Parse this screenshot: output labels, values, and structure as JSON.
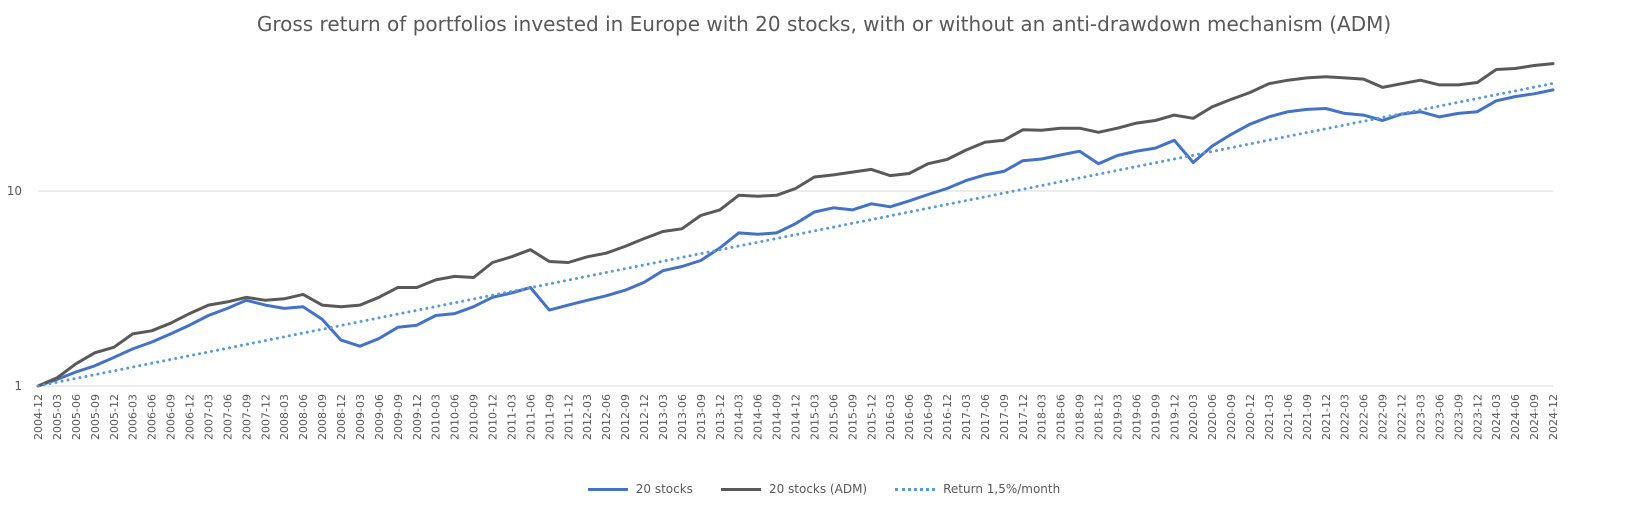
{
  "chart_data": {
    "type": "line",
    "title": "Gross return of portfolios invested in Europe with 20 stocks, with or without an anti-drawdown mechanism (ADM)",
    "xlabel": "",
    "ylabel": "",
    "yscale": "log",
    "ylim": [
      1,
      60
    ],
    "ytick_labels": [
      "1",
      "10"
    ],
    "grid": true,
    "legend_position": "bottom",
    "x_tick_labels": [
      "2004-12",
      "2005-03",
      "2005-06",
      "2005-09",
      "2005-12",
      "2006-03",
      "2006-06",
      "2006-09",
      "2006-12",
      "2007-03",
      "2007-06",
      "2007-09",
      "2007-12",
      "2008-03",
      "2008-06",
      "2008-09",
      "2008-12",
      "2009-03",
      "2009-06",
      "2009-09",
      "2009-12",
      "2010-03",
      "2010-06",
      "2010-09",
      "2010-12",
      "2011-03",
      "2011-06",
      "2011-09",
      "2011-12",
      "2012-03",
      "2012-06",
      "2012-09",
      "2012-12",
      "2013-03",
      "2013-06",
      "2013-09",
      "2013-12",
      "2014-03",
      "2014-06",
      "2014-09",
      "2014-12",
      "2015-03",
      "2015-06",
      "2015-09",
      "2015-12",
      "2016-03",
      "2016-06",
      "2016-09",
      "2016-12",
      "2017-03",
      "2017-06",
      "2017-09",
      "2017-12",
      "2018-03",
      "2018-06",
      "2018-09",
      "2018-12",
      "2019-03",
      "2019-06",
      "2019-09",
      "2019-12",
      "2020-03",
      "2020-06",
      "2020-09",
      "2020-12",
      "2021-03",
      "2021-06",
      "2021-09",
      "2021-12",
      "2022-03",
      "2022-06",
      "2022-09",
      "2022-12",
      "2023-03",
      "2023-06",
      "2023-09",
      "2023-12",
      "2024-03",
      "2024-06",
      "2024-09",
      "2024-12"
    ],
    "series": [
      {
        "name": "20 stocks",
        "color": "#4472C4",
        "style": "solid",
        "points": [
          [
            "2004-12",
            1.0
          ],
          [
            "2005-03",
            1.08
          ],
          [
            "2005-06",
            1.18
          ],
          [
            "2005-09",
            1.27
          ],
          [
            "2005-12",
            1.4
          ],
          [
            "2006-03",
            1.55
          ],
          [
            "2006-06",
            1.68
          ],
          [
            "2006-09",
            1.85
          ],
          [
            "2006-12",
            2.05
          ],
          [
            "2007-03",
            2.3
          ],
          [
            "2007-06",
            2.5
          ],
          [
            "2007-09",
            2.75
          ],
          [
            "2007-12",
            2.6
          ],
          [
            "2008-03",
            2.5
          ],
          [
            "2008-06",
            2.55
          ],
          [
            "2008-09",
            2.2
          ],
          [
            "2008-12",
            1.72
          ],
          [
            "2009-03",
            1.6
          ],
          [
            "2009-06",
            1.75
          ],
          [
            "2009-09",
            2.0
          ],
          [
            "2009-12",
            2.05
          ],
          [
            "2010-03",
            2.3
          ],
          [
            "2010-06",
            2.35
          ],
          [
            "2010-09",
            2.55
          ],
          [
            "2010-12",
            2.85
          ],
          [
            "2011-03",
            3.0
          ],
          [
            "2011-06",
            3.2
          ],
          [
            "2011-09",
            2.45
          ],
          [
            "2011-12",
            2.6
          ],
          [
            "2012-03",
            2.75
          ],
          [
            "2012-06",
            2.9
          ],
          [
            "2012-09",
            3.1
          ],
          [
            "2012-12",
            3.4
          ],
          [
            "2013-03",
            3.9
          ],
          [
            "2013-06",
            4.1
          ],
          [
            "2013-09",
            4.4
          ],
          [
            "2013-12",
            5.1
          ],
          [
            "2014-03",
            6.1
          ],
          [
            "2014-06",
            6.0
          ],
          [
            "2014-09",
            6.1
          ],
          [
            "2014-12",
            6.8
          ],
          [
            "2015-03",
            7.8
          ],
          [
            "2015-06",
            8.2
          ],
          [
            "2015-09",
            8.0
          ],
          [
            "2015-12",
            8.6
          ],
          [
            "2016-03",
            8.3
          ],
          [
            "2016-06",
            8.9
          ],
          [
            "2016-09",
            9.6
          ],
          [
            "2016-12",
            10.3
          ],
          [
            "2017-03",
            11.3
          ],
          [
            "2017-06",
            12.1
          ],
          [
            "2017-09",
            12.6
          ],
          [
            "2017-12",
            14.3
          ],
          [
            "2018-03",
            14.6
          ],
          [
            "2018-06",
            15.3
          ],
          [
            "2018-09",
            16.0
          ],
          [
            "2018-12",
            13.8
          ],
          [
            "2019-03",
            15.2
          ],
          [
            "2019-06",
            16.0
          ],
          [
            "2019-09",
            16.6
          ],
          [
            "2019-12",
            18.2
          ],
          [
            "2020-03",
            14.0
          ],
          [
            "2020-06",
            17.0
          ],
          [
            "2020-09",
            19.5
          ],
          [
            "2020-12",
            22.0
          ],
          [
            "2021-03",
            24.0
          ],
          [
            "2021-06",
            25.5
          ],
          [
            "2021-09",
            26.2
          ],
          [
            "2021-12",
            26.5
          ],
          [
            "2022-03",
            25.0
          ],
          [
            "2022-06",
            24.5
          ],
          [
            "2022-09",
            23.0
          ],
          [
            "2022-12",
            24.8
          ],
          [
            "2023-03",
            25.5
          ],
          [
            "2023-06",
            24.0
          ],
          [
            "2023-09",
            25.0
          ],
          [
            "2023-12",
            25.5
          ],
          [
            "2024-03",
            29.0
          ],
          [
            "2024-06",
            30.5
          ],
          [
            "2024-09",
            31.5
          ],
          [
            "2024-12",
            33.0
          ]
        ]
      },
      {
        "name": "20 stocks (ADM)",
        "color": "#595959",
        "style": "solid",
        "points": [
          [
            "2004-12",
            1.0
          ],
          [
            "2005-03",
            1.1
          ],
          [
            "2005-06",
            1.3
          ],
          [
            "2005-09",
            1.48
          ],
          [
            "2005-12",
            1.58
          ],
          [
            "2006-03",
            1.85
          ],
          [
            "2006-06",
            1.92
          ],
          [
            "2006-09",
            2.1
          ],
          [
            "2006-12",
            2.35
          ],
          [
            "2007-03",
            2.6
          ],
          [
            "2007-06",
            2.7
          ],
          [
            "2007-09",
            2.85
          ],
          [
            "2007-12",
            2.75
          ],
          [
            "2008-03",
            2.8
          ],
          [
            "2008-06",
            2.95
          ],
          [
            "2008-09",
            2.6
          ],
          [
            "2008-12",
            2.55
          ],
          [
            "2009-03",
            2.6
          ],
          [
            "2009-06",
            2.85
          ],
          [
            "2009-09",
            3.2
          ],
          [
            "2009-12",
            3.2
          ],
          [
            "2010-03",
            3.5
          ],
          [
            "2010-06",
            3.65
          ],
          [
            "2010-09",
            3.6
          ],
          [
            "2010-12",
            4.3
          ],
          [
            "2011-03",
            4.6
          ],
          [
            "2011-06",
            5.0
          ],
          [
            "2011-09",
            4.35
          ],
          [
            "2011-12",
            4.3
          ],
          [
            "2012-03",
            4.6
          ],
          [
            "2012-06",
            4.8
          ],
          [
            "2012-09",
            5.2
          ],
          [
            "2012-12",
            5.7
          ],
          [
            "2013-03",
            6.2
          ],
          [
            "2013-06",
            6.4
          ],
          [
            "2013-09",
            7.5
          ],
          [
            "2013-12",
            8.0
          ],
          [
            "2014-03",
            9.5
          ],
          [
            "2014-06",
            9.4
          ],
          [
            "2014-09",
            9.5
          ],
          [
            "2014-12",
            10.3
          ],
          [
            "2015-03",
            11.8
          ],
          [
            "2015-06",
            12.1
          ],
          [
            "2015-09",
            12.5
          ],
          [
            "2015-12",
            12.9
          ],
          [
            "2016-03",
            12.0
          ],
          [
            "2016-06",
            12.3
          ],
          [
            "2016-09",
            13.8
          ],
          [
            "2016-12",
            14.5
          ],
          [
            "2017-03",
            16.2
          ],
          [
            "2017-06",
            17.8
          ],
          [
            "2017-09",
            18.2
          ],
          [
            "2017-12",
            20.6
          ],
          [
            "2018-03",
            20.5
          ],
          [
            "2018-06",
            21.0
          ],
          [
            "2018-09",
            21.0
          ],
          [
            "2018-12",
            20.0
          ],
          [
            "2019-03",
            21.0
          ],
          [
            "2019-06",
            22.3
          ],
          [
            "2019-09",
            23.0
          ],
          [
            "2019-12",
            24.5
          ],
          [
            "2020-03",
            23.6
          ],
          [
            "2020-06",
            27.0
          ],
          [
            "2020-09",
            29.5
          ],
          [
            "2020-12",
            32.0
          ],
          [
            "2021-03",
            35.5
          ],
          [
            "2021-06",
            37.0
          ],
          [
            "2021-09",
            38.0
          ],
          [
            "2021-12",
            38.5
          ],
          [
            "2022-03",
            38.0
          ],
          [
            "2022-06",
            37.5
          ],
          [
            "2022-09",
            34.0
          ],
          [
            "2022-12",
            35.5
          ],
          [
            "2023-03",
            37.0
          ],
          [
            "2023-06",
            35.0
          ],
          [
            "2023-09",
            35.0
          ],
          [
            "2023-12",
            36.0
          ],
          [
            "2024-03",
            42.0
          ],
          [
            "2024-06",
            42.5
          ],
          [
            "2024-09",
            44.0
          ],
          [
            "2024-12",
            45.0
          ]
        ]
      },
      {
        "name": "Return 1,5%/month",
        "color": "#5B9BD5",
        "style": "dotted",
        "monthly_rate": 0.015,
        "start": 1.0
      }
    ]
  }
}
